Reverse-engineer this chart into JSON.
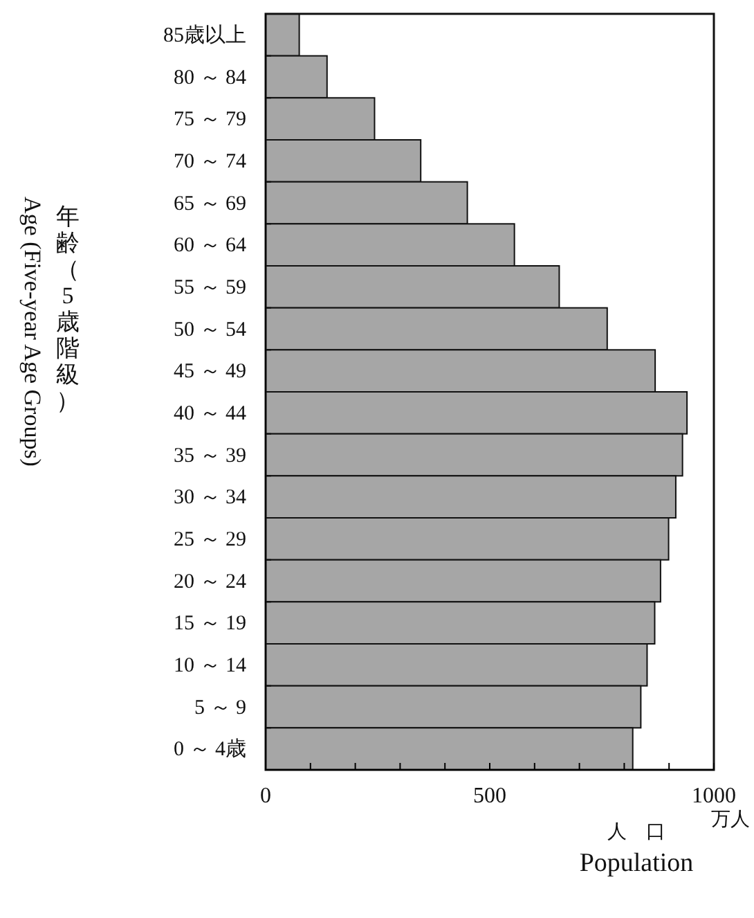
{
  "chart_data": {
    "type": "bar",
    "orientation": "horizontal",
    "categories": [
      "85歳以上",
      "80 ～ 84",
      "75 ～ 79",
      "70 ～ 74",
      "65 ～ 69",
      "60 ～ 64",
      "55 ～ 59",
      "50 ～ 54",
      "45 ～ 49",
      "40 ～ 44",
      "35 ～ 39",
      "30 ～ 34",
      "25 ～ 29",
      "20 ～ 24",
      "15 ～ 19",
      "10 ～ 14",
      "5 ～ 9",
      "0 ～ 4歳"
    ],
    "values": [
      75,
      137,
      243,
      346,
      450,
      555,
      655,
      762,
      869,
      940,
      930,
      915,
      899,
      881,
      868,
      851,
      837,
      819
    ],
    "color": "#a6a6a6",
    "xlim": [
      0,
      1000
    ],
    "xticks": [
      0,
      {
        "value": 100,
        "label": null
      },
      {
        "value": 200,
        "label": null
      },
      {
        "value": 300,
        "label": null
      },
      {
        "value": 400,
        "label": null
      },
      500,
      {
        "value": 600,
        "label": null
      },
      {
        "value": 700,
        "label": null
      },
      {
        "value": 800,
        "label": null
      },
      {
        "value": 900,
        "label": null
      },
      1000
    ],
    "xlabel": "人　口\nPopulation",
    "ylabel": "年齢（5歳階級）\nAge (Five-year Age Groups)",
    "annotations": [
      "万人"
    ],
    "grid": false
  }
}
